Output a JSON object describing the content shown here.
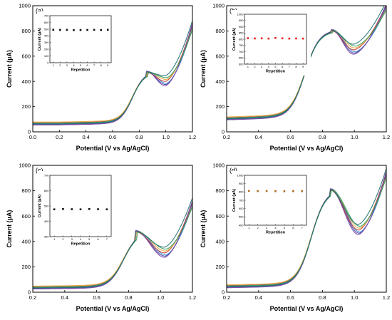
{
  "figure": {
    "panels": [
      {
        "tag": "(a)",
        "xlabel": "Potential (V vs Ag/AgCl)",
        "ylabel": "Current (µA)",
        "xlim": [
          0.0,
          1.2
        ],
        "ylim": [
          0,
          1000
        ],
        "xticks": [
          "0.0",
          "0.2",
          "0.4",
          "0.6",
          "0.8",
          "1.0",
          "1.2"
        ],
        "yticks": [
          "0",
          "200",
          "400",
          "600",
          "800",
          "1000"
        ],
        "curve": {
          "base": 60,
          "baseSlope": 20,
          "onset": 0.62,
          "peakV": 0.858,
          "peakI": 475,
          "valleyV": 1.0,
          "valleyI": 375,
          "endI": 910
        },
        "inset": {
          "xlabel": "Repetition",
          "ylabel": "Current (µA)",
          "ylim": [
            0,
            700
          ],
          "yticks": [
            "0",
            "100",
            "200",
            "300",
            "400",
            "500",
            "600",
            "700"
          ],
          "xticks": [
            "1",
            "2",
            "3",
            "4",
            "5",
            "6",
            "7",
            "8",
            "9"
          ],
          "marker_color": "#111111",
          "values": [
            490,
            488,
            489,
            485,
            487,
            488,
            489,
            487,
            490
          ]
        }
      },
      {
        "tag": "(b)",
        "xlabel": "Potential (V vs Ag/AgCl)",
        "ylabel": "Current (µA)",
        "xlim": [
          0.2,
          1.2
        ],
        "ylim": [
          0,
          1000
        ],
        "xticks": [
          "0.2",
          "0.4",
          "0.6",
          "0.8",
          "1.0",
          "1.2"
        ],
        "yticks": [
          "0",
          "200",
          "400",
          "600",
          "800",
          "1000"
        ],
        "curve": {
          "base": 100,
          "baseSlope": 40,
          "onset": 0.56,
          "peakV": 0.86,
          "peakI": 805,
          "valleyV": 1.0,
          "valleyI": 625,
          "endI": 1050
        },
        "inset": {
          "xlabel": "Repetition",
          "ylabel": "Current (µA)",
          "ylim": [
            600,
            1000
          ],
          "yticks": [
            "600",
            "650",
            "700",
            "750",
            "800",
            "850",
            "900",
            "950",
            "1000"
          ],
          "xticks": [
            "1",
            "2",
            "3",
            "4",
            "5",
            "6",
            "7",
            "8",
            "9"
          ],
          "marker_color": "#e8231f",
          "values": [
            808,
            806,
            807,
            805,
            810,
            807,
            805,
            806,
            805
          ]
        }
      },
      {
        "tag": "(c)",
        "xlabel": "Potential (V vs Ag/AgCl)",
        "ylabel": "Current (µA)",
        "xlim": [
          0.2,
          1.2
        ],
        "ylim": [
          0,
          1000
        ],
        "xticks": [
          "0.2",
          "0.4",
          "0.6",
          "0.8",
          "1.0",
          "1.2"
        ],
        "yticks": [
          "0",
          "200",
          "400",
          "600",
          "800",
          "1000"
        ],
        "curve": {
          "base": 30,
          "baseSlope": 15,
          "onset": 0.64,
          "peakV": 0.845,
          "peakI": 480,
          "valleyV": 1.03,
          "valleyI": 285,
          "endI": 790
        },
        "inset": {
          "xlabel": "Repetition",
          "ylabel": "Current (µA)",
          "ylim": [
            300,
            700
          ],
          "yticks": [
            "300",
            "400",
            "500",
            "600",
            "700"
          ],
          "xticks": [
            "1",
            "2",
            "3",
            "4",
            "5",
            "6",
            "7"
          ],
          "marker_color": "#111111",
          "values": [
            478,
            480,
            479,
            478,
            480,
            479,
            478
          ]
        }
      },
      {
        "tag": "(d)",
        "xlabel": "Potential (V vs Ag/AgCl)",
        "ylabel": "Current (µA)",
        "xlim": [
          0.2,
          1.2
        ],
        "ylim": [
          0,
          1000
        ],
        "xticks": [
          "0.2",
          "0.4",
          "0.6",
          "0.8",
          "1.0",
          "1.2"
        ],
        "yticks": [
          "0",
          "200",
          "400",
          "600",
          "800",
          "1000"
        ],
        "curve": {
          "base": 40,
          "baseSlope": 25,
          "onset": 0.6,
          "peakV": 0.85,
          "peakI": 810,
          "valleyV": 1.03,
          "valleyI": 465,
          "endI": 1030
        },
        "inset": {
          "xlabel": "Repetition",
          "ylabel": "Current (µA)",
          "ylim": [
            400,
            1000
          ],
          "yticks": [
            "400",
            "500",
            "600",
            "700",
            "800",
            "900",
            "1000"
          ],
          "xticks": [
            "1",
            "2",
            "3",
            "4",
            "5",
            "6",
            "7"
          ],
          "marker_color": "#b06a1e",
          "values": [
            812,
            810,
            811,
            809,
            808,
            810,
            809
          ]
        }
      }
    ],
    "series_colors": [
      "#3b3fa8",
      "#3d8fcf",
      "#c0392b",
      "#e8a23a",
      "#7a3fa0",
      "#2f9e5b",
      "#1f6f6f"
    ]
  },
  "chart_data": [
    {
      "type": "line",
      "panel": "(a)",
      "xlabel": "Potential (V vs Ag/AgCl)",
      "ylabel": "Current (µA)",
      "xlim": [
        0.0,
        1.2
      ],
      "ylim": [
        0,
        1000
      ],
      "series_count": 9,
      "approx_points": {
        "x": [
          0.0,
          0.6,
          0.858,
          1.0,
          1.2
        ],
        "y": [
          60,
          90,
          475,
          375,
          910
        ]
      }
    },
    {
      "type": "scatter",
      "panel": "(a) inset",
      "xlabel": "Repetition",
      "ylabel": "Current (µA)",
      "x": [
        1,
        2,
        3,
        4,
        5,
        6,
        7,
        8,
        9
      ],
      "y": [
        490,
        488,
        489,
        485,
        487,
        488,
        489,
        487,
        490
      ],
      "ylim": [
        0,
        700
      ]
    },
    {
      "type": "line",
      "panel": "(b)",
      "xlabel": "Potential (V vs Ag/AgCl)",
      "ylabel": "Current (µA)",
      "xlim": [
        0.2,
        1.2
      ],
      "ylim": [
        0,
        1000
      ],
      "series_count": 9,
      "approx_points": {
        "x": [
          0.2,
          0.6,
          0.86,
          1.0,
          1.15
        ],
        "y": [
          100,
          170,
          805,
          625,
          1000
        ]
      }
    },
    {
      "type": "scatter",
      "panel": "(b) inset",
      "xlabel": "Repetition",
      "ylabel": "Current (µA)",
      "x": [
        1,
        2,
        3,
        4,
        5,
        6,
        7,
        8,
        9
      ],
      "y": [
        808,
        806,
        807,
        805,
        810,
        807,
        805,
        806,
        805
      ],
      "ylim": [
        600,
        1000
      ]
    },
    {
      "type": "line",
      "panel": "(c)",
      "xlabel": "Potential (V vs Ag/AgCl)",
      "ylabel": "Current (µA)",
      "xlim": [
        0.2,
        1.2
      ],
      "ylim": [
        0,
        1000
      ],
      "series_count": 7,
      "approx_points": {
        "x": [
          0.2,
          0.6,
          0.845,
          1.03,
          1.2
        ],
        "y": [
          30,
          55,
          480,
          285,
          790
        ]
      }
    },
    {
      "type": "scatter",
      "panel": "(c) inset",
      "xlabel": "Repetition",
      "ylabel": "Current (µA)",
      "x": [
        1,
        2,
        3,
        4,
        5,
        6,
        7
      ],
      "y": [
        478,
        480,
        479,
        478,
        480,
        479,
        478
      ],
      "ylim": [
        300,
        700
      ]
    },
    {
      "type": "line",
      "panel": "(d)",
      "xlabel": "Potential (V vs Ag/AgCl)",
      "ylabel": "Current (µA)",
      "xlim": [
        0.2,
        1.2
      ],
      "ylim": [
        0,
        1000
      ],
      "series_count": 7,
      "approx_points": {
        "x": [
          0.2,
          0.6,
          0.85,
          1.03,
          1.2
        ],
        "y": [
          40,
          75,
          810,
          465,
          1030
        ]
      }
    },
    {
      "type": "scatter",
      "panel": "(d) inset",
      "xlabel": "Repetition",
      "ylabel": "Current (µA)",
      "x": [
        1,
        2,
        3,
        4,
        5,
        6,
        7
      ],
      "y": [
        812,
        810,
        811,
        809,
        808,
        810,
        809
      ],
      "ylim": [
        400,
        1000
      ]
    }
  ]
}
